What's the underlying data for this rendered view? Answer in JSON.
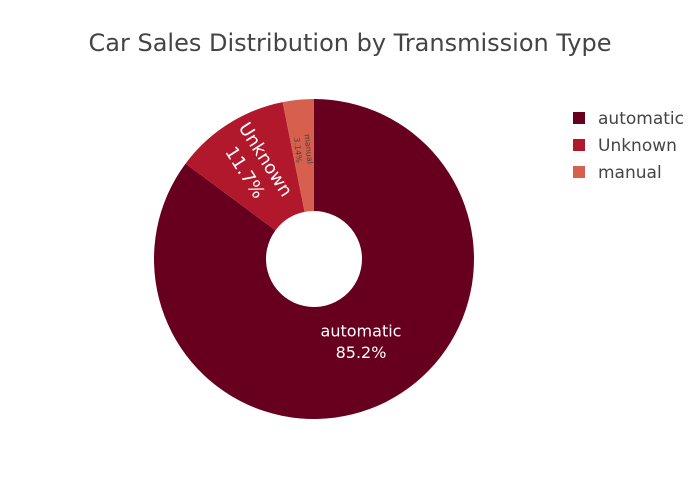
{
  "chart_data": {
    "type": "pie",
    "hole": true,
    "title": "Car Sales Distribution by Transmission Type",
    "labels": [
      "automatic",
      "Unknown",
      "manual"
    ],
    "values": [
      85.2,
      11.7,
      3.14
    ],
    "percent_labels": [
      "85.2%",
      "11.7%",
      "3.14%"
    ],
    "colors": [
      "#67001f",
      "#b2182b",
      "#d6604d"
    ],
    "legend_placement": "top-right"
  }
}
